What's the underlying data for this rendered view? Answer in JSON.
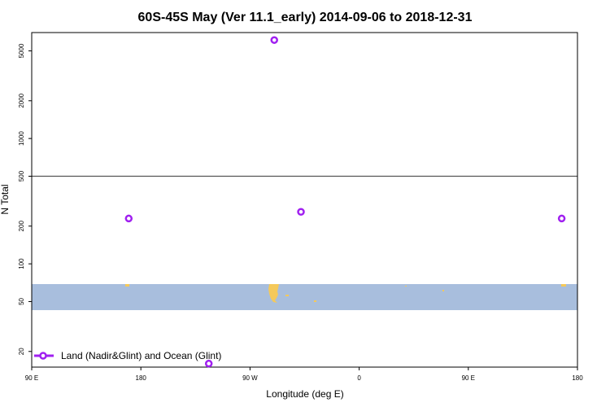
{
  "chart_data": {
    "type": "scatter",
    "title": "60S-45S May (Ver 11.1_early)   2014-09-06 to 2018-12-31",
    "xlabel": "Longitude (deg E)",
    "ylabel": "N Total",
    "x_ticks": [
      {
        "value": 90,
        "label": "90 E"
      },
      {
        "value": 180,
        "label": "180"
      },
      {
        "value": 270,
        "label": "90 W"
      },
      {
        "value": 360,
        "label": "0"
      },
      {
        "value": 450,
        "label": "90 E"
      },
      {
        "value": 540,
        "label": "180"
      }
    ],
    "xlim": [
      90,
      540
    ],
    "y_ticks": [
      20,
      50,
      100,
      200,
      500,
      1000,
      2000,
      5000
    ],
    "ylim": [
      15,
      7000
    ],
    "y_scale": "log",
    "reference_line_y": 500,
    "series": [
      {
        "name": "Land (Nadir&Glint) and Ocean (Glint)",
        "color": "#a020f0",
        "marker": "open-circle",
        "points": [
          {
            "x": 170,
            "y": 230
          },
          {
            "x": 236,
            "y": 16
          },
          {
            "x": 290,
            "y": 6100
          },
          {
            "x": 312,
            "y": 260
          },
          {
            "x": 527,
            "y": 230
          }
        ]
      }
    ],
    "map_band": {
      "lat_range": [
        -60,
        -45
      ],
      "ocean_color": "#a8bedd",
      "land_color": "#f5c95a"
    },
    "legend_position": "bottom-left",
    "grid": false
  }
}
